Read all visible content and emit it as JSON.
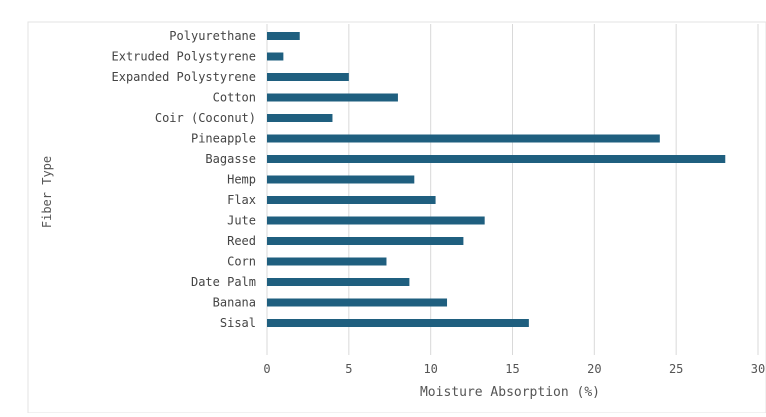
{
  "caption_fragment": "",
  "chart_data": {
    "type": "bar",
    "orientation": "horizontal",
    "title": "",
    "xlabel": "Moisture Absorption (%)",
    "ylabel": "Fiber Type",
    "xlim": [
      0,
      30
    ],
    "xticks": [
      0,
      5,
      10,
      15,
      20,
      25,
      30
    ],
    "grid": "vertical",
    "bar_color": "#1f5f7f",
    "categories": [
      "Polyurethane",
      "Extruded Polystyrene",
      "Expanded Polystyrene",
      "Cotton",
      "Coir (Coconut)",
      "Pineapple",
      "Bagasse",
      "Hemp",
      "Flax",
      "Jute",
      "Reed",
      "Corn",
      "Date Palm",
      "Banana",
      "Sisal"
    ],
    "values": [
      2,
      1,
      5,
      8,
      4,
      24,
      28,
      9,
      10.3,
      13.3,
      12,
      7.3,
      8.7,
      11,
      16
    ]
  }
}
